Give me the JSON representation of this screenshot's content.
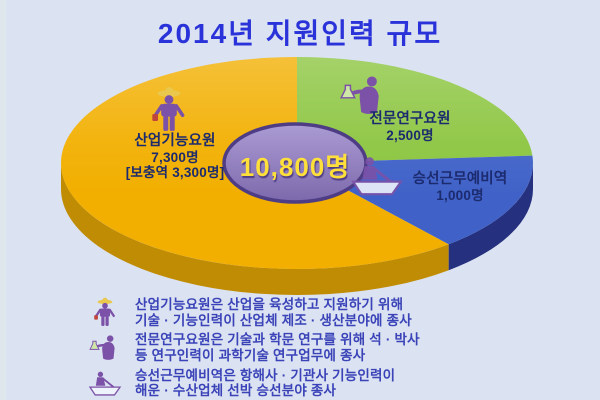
{
  "title": "2014년 지원인력 규모",
  "chart_data": {
    "type": "pie",
    "title": "2014년 지원인력 규모",
    "unit": "명",
    "total": 10800,
    "center_label": "10,800명",
    "legend_position": "labels-on-slices",
    "slices": [
      {
        "name": "산업기능요원",
        "value": 7300,
        "value_label": "7,300명",
        "sub_label": "[보충역 3,300명]",
        "color": "#F2AF00",
        "side_color": "#C08C04",
        "icon": "worker-icon",
        "display_start_deg": 140,
        "display_end_deg": 360
      },
      {
        "name": "전문연구요원",
        "value": 2500,
        "value_label": "2,500명",
        "sub_label": "",
        "color": "#8BC53F",
        "side_color": "#6FA32E",
        "icon": "researcher-icon",
        "display_start_deg": 0,
        "display_end_deg": 86
      },
      {
        "name": "승선근무예비역",
        "value": 1000,
        "value_label": "1,000명",
        "sub_label": "",
        "color": "#4062C8",
        "side_color": "#25307E",
        "icon": "sailor-icon",
        "display_start_deg": 86,
        "display_end_deg": 140
      }
    ]
  },
  "notes": [
    {
      "icon": "worker-icon",
      "line1": "산업기능요원은 산업을 육성하고 지원하기 위해",
      "line2": "기술 · 기능인력이 산업체 제조 · 생산분야에 종사"
    },
    {
      "icon": "researcher-icon",
      "line1": "전문연구요원은 기술과 학문 연구를 위해 석 · 박사",
      "line2": "등 연구인력이 과학기술 연구업무에 종사"
    },
    {
      "icon": "sailor-icon",
      "line1": "승선근무예비역은 항해사 · 기관사 기능인력이",
      "line2": "해운 · 수산업체 선박 승선분야 종사"
    }
  ],
  "colors": {
    "background": "#DBE2F1",
    "title_text": "#2A32D9",
    "slice_label_text": "#1C2A6E",
    "note_text": "#3A43B8",
    "center_oval_fill": "#8E7CBC",
    "center_oval_border": "#4E3D85",
    "center_text": "#FFDF3A",
    "icon_purple": "#7C52A8"
  }
}
